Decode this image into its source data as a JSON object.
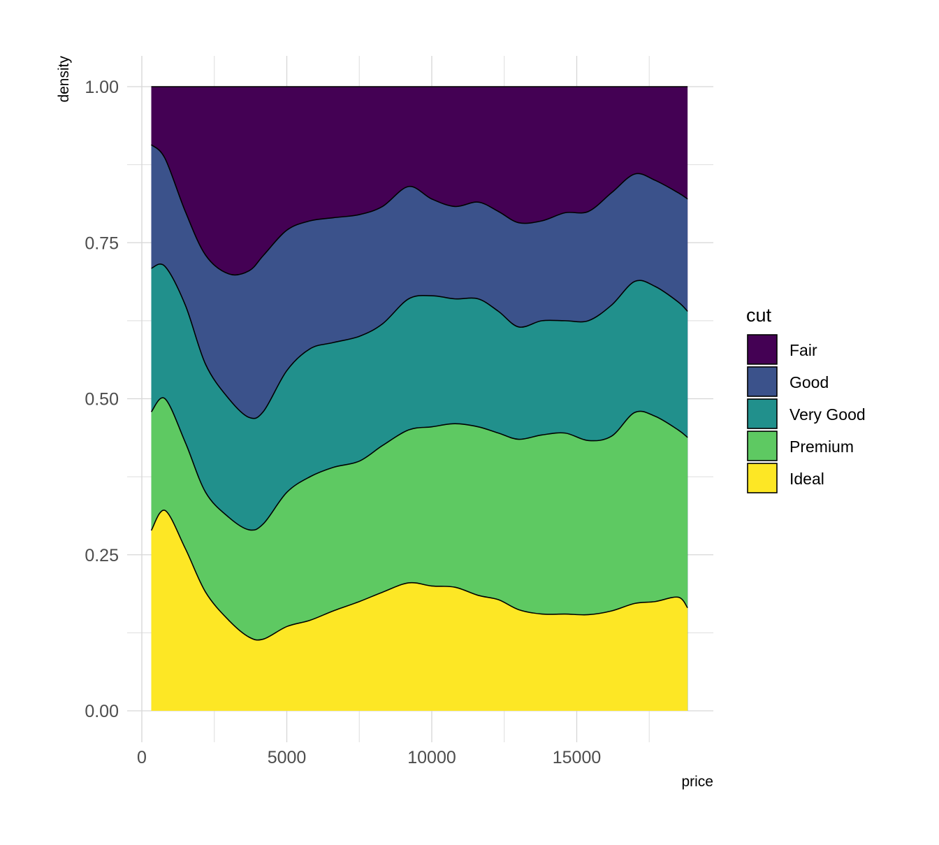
{
  "chart_data": {
    "type": "area",
    "stacking": "fill",
    "xlabel": "price",
    "ylabel": "density",
    "xlim": [
      0,
      19700
    ],
    "ylim": [
      0,
      1.05
    ],
    "x_ticks": [
      0,
      5000,
      10000,
      15000
    ],
    "x_tick_labels": [
      "0",
      "5000",
      "10000",
      "15000"
    ],
    "y_ticks": [
      0,
      0.25,
      0.5,
      0.75,
      1.0
    ],
    "y_tick_labels": [
      "0.00",
      "0.25",
      "0.50",
      "0.75",
      "1.00"
    ],
    "grid": true,
    "legend": {
      "title": "cut",
      "position": "right"
    },
    "x": [
      326,
      800,
      1500,
      2200,
      3000,
      3700,
      4200,
      5000,
      5800,
      6600,
      7500,
      8300,
      9200,
      10000,
      10800,
      11600,
      12300,
      13000,
      13800,
      14600,
      15400,
      16200,
      17000,
      17700,
      18500,
      18823
    ],
    "series": [
      {
        "name": "Ideal",
        "color": "#FDE725",
        "cumulative_upper": [
          0.289,
          0.321,
          0.26,
          0.19,
          0.145,
          0.118,
          0.115,
          0.135,
          0.145,
          0.16,
          0.175,
          0.19,
          0.205,
          0.2,
          0.198,
          0.185,
          0.178,
          0.162,
          0.155,
          0.155,
          0.154,
          0.16,
          0.172,
          0.175,
          0.182,
          0.165
        ]
      },
      {
        "name": "Premium",
        "color": "#5EC962",
        "cumulative_upper": [
          0.479,
          0.5,
          0.43,
          0.35,
          0.31,
          0.29,
          0.3,
          0.35,
          0.375,
          0.39,
          0.4,
          0.425,
          0.45,
          0.455,
          0.46,
          0.455,
          0.445,
          0.435,
          0.442,
          0.445,
          0.433,
          0.44,
          0.478,
          0.472,
          0.45,
          0.438
        ]
      },
      {
        "name": "Very Good",
        "color": "#21908C",
        "cumulative_upper": [
          0.709,
          0.712,
          0.65,
          0.555,
          0.5,
          0.47,
          0.48,
          0.545,
          0.58,
          0.59,
          0.6,
          0.62,
          0.66,
          0.665,
          0.66,
          0.66,
          0.64,
          0.615,
          0.625,
          0.625,
          0.625,
          0.65,
          0.688,
          0.68,
          0.655,
          0.64
        ]
      },
      {
        "name": "Good",
        "color": "#3B528B",
        "cumulative_upper": [
          0.907,
          0.885,
          0.8,
          0.73,
          0.7,
          0.705,
          0.73,
          0.77,
          0.785,
          0.79,
          0.795,
          0.808,
          0.84,
          0.82,
          0.808,
          0.815,
          0.8,
          0.782,
          0.785,
          0.798,
          0.8,
          0.83,
          0.86,
          0.85,
          0.83,
          0.82
        ]
      },
      {
        "name": "Fair",
        "color": "#440154",
        "cumulative_upper": [
          1,
          1,
          1,
          1,
          1,
          1,
          1,
          1,
          1,
          1,
          1,
          1,
          1,
          1,
          1,
          1,
          1,
          1,
          1,
          1,
          1,
          1,
          1,
          1,
          1,
          1
        ]
      }
    ]
  }
}
